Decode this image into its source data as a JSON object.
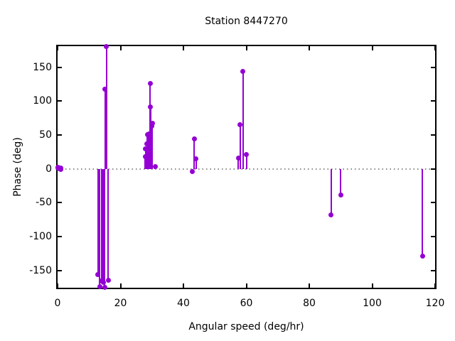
{
  "colors": {
    "series": "#9400d3",
    "zero_line": "#8a8a8a",
    "border": "#000000",
    "text": "#000000",
    "background": "#ffffff"
  },
  "chart_data": {
    "type": "stem",
    "title": "Station 8447270",
    "xlabel": "Angular speed (deg/hr)",
    "ylabel": "Phase (deg)",
    "xlim": [
      0,
      120
    ],
    "ylim": [
      -175.5,
      181
    ],
    "xticks": [
      0,
      20,
      40,
      60,
      80,
      100,
      120
    ],
    "yticks": [
      -150,
      -100,
      -50,
      0,
      50,
      100,
      150
    ],
    "grid": false,
    "legend": false,
    "zero_axis": "dotted",
    "points": [
      [
        0.04,
        2
      ],
      [
        0.08,
        1
      ],
      [
        0.54,
        0
      ],
      [
        1.02,
        -1
      ],
      [
        1.1,
        1
      ],
      [
        12.85,
        -156
      ],
      [
        13.4,
        -174
      ],
      [
        13.94,
        -166
      ],
      [
        14.5,
        -168
      ],
      [
        14.96,
        -175
      ],
      [
        15.04,
        118
      ],
      [
        15.59,
        181
      ],
      [
        16.14,
        -165
      ],
      [
        27.9,
        18
      ],
      [
        27.97,
        29
      ],
      [
        28.44,
        37
      ],
      [
        28.51,
        50
      ],
      [
        28.98,
        52
      ],
      [
        29.46,
        126
      ],
      [
        29.53,
        91
      ],
      [
        29.96,
        63
      ],
      [
        30.0,
        66
      ],
      [
        30.04,
        64
      ],
      [
        30.08,
        67
      ],
      [
        31.02,
        3
      ],
      [
        42.93,
        -4
      ],
      [
        43.48,
        44
      ],
      [
        44.03,
        15
      ],
      [
        57.42,
        16
      ],
      [
        57.97,
        65
      ],
      [
        58.98,
        144
      ],
      [
        60.0,
        21
      ],
      [
        86.95,
        -68
      ],
      [
        90.0,
        -39
      ],
      [
        115.94,
        -129
      ]
    ]
  }
}
